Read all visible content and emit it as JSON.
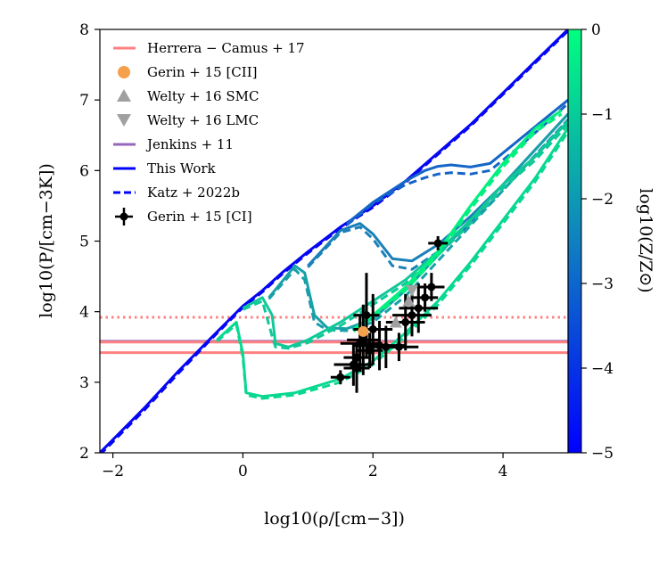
{
  "chart_data": {
    "type": "line",
    "xlabel": "log10(ρ/[cm−3])",
    "ylabel": "log10(P/[cm−3K])",
    "xlim": [
      -2.2,
      5.0
    ],
    "ylim": [
      2.0,
      8.0
    ],
    "x_ticks": [
      -2,
      0,
      2,
      4
    ],
    "y_ticks": [
      2,
      3,
      4,
      5,
      6,
      7,
      8
    ],
    "x_tick_labels": [
      "−2",
      "0",
      "2",
      "4"
    ],
    "y_tick_labels": [
      "2",
      "3",
      "4",
      "5",
      "6",
      "7",
      "8"
    ],
    "colorbar": {
      "label": "log10(Z/Z⊙)",
      "range": [
        -5,
        0
      ],
      "ticks": [
        0,
        -1,
        -2,
        -3,
        -4,
        -5
      ],
      "tick_labels": [
        "0",
        "−1",
        "−2",
        "−3",
        "−4",
        "−5"
      ],
      "color_low": "#0000ff",
      "color_high": "#00ff80"
    },
    "legend": {
      "placement": "top-left",
      "entries": [
        {
          "label": "Herrera − Camus + 17",
          "marker": "line",
          "color": "#ff8080"
        },
        {
          "label": "Gerin + 15 [CII]",
          "marker": "circle",
          "color": "#f5a04a"
        },
        {
          "label": "Welty + 16 SMC",
          "marker": "triangle-up",
          "color": "#a0a0a0"
        },
        {
          "label": "Welty + 16 LMC",
          "marker": "triangle-down",
          "color": "#a0a0a0"
        },
        {
          "label": "Jenkins + 11",
          "marker": "line",
          "color": "#9467bd"
        },
        {
          "label": "This Work",
          "marker": "line",
          "color": "#0000ff"
        },
        {
          "label": "Katz + 2022b",
          "marker": "dashed",
          "color": "#0000ff"
        },
        {
          "label": "Gerin + 15 [CI]",
          "marker": "errorbar",
          "color": "#000000"
        }
      ]
    },
    "hlines": [
      {
        "name": "Herrera-Camus+17 upper",
        "y": 3.92,
        "color": "#ff8080",
        "style": "dotted"
      },
      {
        "name": "Jenkins+11",
        "y": 3.58,
        "color": "#9467bd",
        "style": "solid"
      },
      {
        "name": "Herrera-Camus+17 mean",
        "y": 3.57,
        "color": "#ff8080",
        "style": "solid"
      },
      {
        "name": "Herrera-Camus+17 lower",
        "y": 3.42,
        "color": "#ff8080",
        "style": "solid"
      }
    ],
    "series": [
      {
        "name": "This Work",
        "logZ": -5,
        "color": "#0505f5",
        "style": "solid",
        "x": [
          -2.2,
          -1.5,
          -1.0,
          -0.5,
          0.0,
          0.3,
          0.6,
          1.0,
          1.5,
          2.0,
          2.5,
          3.0,
          3.5,
          4.0,
          4.5,
          5.0
        ],
        "y": [
          2.0,
          2.65,
          3.15,
          3.62,
          4.08,
          4.3,
          4.55,
          4.85,
          5.2,
          5.5,
          5.85,
          6.25,
          6.65,
          7.1,
          7.55,
          8.0
        ]
      },
      {
        "name": "Katz + 2022b",
        "logZ": -5,
        "color": "#0505f5",
        "style": "dashed",
        "x": [
          -2.2,
          -1.5,
          -1.0,
          -0.5,
          0.0,
          0.3,
          0.6,
          1.0,
          1.5,
          2.0,
          2.5,
          3.0,
          3.5,
          4.0,
          4.5,
          5.0
        ],
        "y": [
          1.97,
          2.62,
          3.12,
          3.6,
          4.06,
          4.28,
          4.53,
          4.83,
          5.18,
          5.48,
          5.83,
          6.23,
          6.63,
          7.08,
          7.53,
          7.98
        ]
      },
      {
        "name": "This Work",
        "logZ": -3.6,
        "color": "#1565c8",
        "style": "solid",
        "x": [
          1.6,
          2.0,
          2.5,
          2.8,
          3.0,
          3.2,
          3.5,
          3.8,
          4.2,
          4.6,
          5.0
        ],
        "y": [
          5.25,
          5.55,
          5.85,
          6.0,
          6.06,
          6.08,
          6.05,
          6.1,
          6.4,
          6.7,
          7.0
        ]
      },
      {
        "name": "Katz + 2022b",
        "logZ": -3.6,
        "color": "#1565c8",
        "style": "dashed",
        "x": [
          1.6,
          2.0,
          2.5,
          2.8,
          3.0,
          3.2,
          3.5,
          3.8,
          4.2,
          4.6,
          5.0
        ],
        "y": [
          5.23,
          5.53,
          5.8,
          5.9,
          5.95,
          5.97,
          5.95,
          6.0,
          6.3,
          6.62,
          6.95
        ]
      },
      {
        "name": "This Work",
        "logZ": -3.0,
        "color": "#1a80b8",
        "style": "solid",
        "x": [
          1.0,
          1.5,
          1.8,
          2.0,
          2.3,
          2.6,
          3.0,
          3.5,
          4.0,
          4.5,
          5.0
        ],
        "y": [
          4.65,
          5.15,
          5.25,
          5.1,
          4.75,
          4.72,
          4.95,
          5.35,
          5.8,
          6.3,
          6.8
        ]
      },
      {
        "name": "Katz + 2022b",
        "logZ": -3.0,
        "color": "#1a80b8",
        "style": "dashed",
        "x": [
          1.0,
          1.5,
          1.8,
          2.0,
          2.3,
          2.6,
          3.0,
          3.5,
          4.0,
          4.5,
          5.0
        ],
        "y": [
          4.63,
          5.12,
          5.2,
          5.03,
          4.65,
          4.6,
          4.85,
          5.25,
          5.72,
          6.22,
          6.72
        ]
      },
      {
        "name": "This Work",
        "logZ": -2.2,
        "color": "#18a0a8",
        "style": "solid",
        "x": [
          0.4,
          0.8,
          0.95,
          1.1,
          1.3,
          1.6,
          2.0,
          2.5,
          3.0,
          3.5,
          4.0,
          4.5,
          5.0
        ],
        "y": [
          4.2,
          4.65,
          4.55,
          3.95,
          3.77,
          3.76,
          3.9,
          4.3,
          4.8,
          5.3,
          5.8,
          6.3,
          6.8
        ]
      },
      {
        "name": "Katz + 2022b",
        "logZ": -2.2,
        "color": "#18a0a8",
        "style": "dashed",
        "x": [
          0.4,
          0.8,
          0.95,
          1.1,
          1.3,
          1.6,
          2.0,
          2.5,
          3.0,
          3.5,
          4.0,
          4.5,
          5.0
        ],
        "y": [
          4.18,
          4.6,
          4.45,
          3.85,
          3.74,
          3.73,
          3.85,
          4.22,
          4.72,
          5.22,
          5.72,
          6.22,
          6.72
        ]
      },
      {
        "name": "This Work",
        "logZ": -1.2,
        "color": "#10c898",
        "style": "solid",
        "x": [
          0.0,
          0.3,
          0.45,
          0.5,
          0.7,
          1.0,
          1.5,
          2.0,
          2.5,
          3.0,
          3.5,
          4.0,
          4.5,
          5.0
        ],
        "y": [
          4.05,
          4.2,
          3.95,
          3.55,
          3.5,
          3.6,
          3.85,
          4.15,
          4.45,
          4.85,
          5.3,
          5.8,
          6.2,
          6.7
        ]
      },
      {
        "name": "Katz + 2022b",
        "logZ": -1.2,
        "color": "#10c898",
        "style": "dashed",
        "x": [
          0.0,
          0.3,
          0.45,
          0.5,
          0.7,
          1.0,
          1.5,
          2.0,
          2.5,
          3.0,
          3.5,
          4.0,
          4.5,
          5.0
        ],
        "y": [
          4.03,
          4.15,
          3.65,
          3.5,
          3.48,
          3.56,
          3.8,
          4.1,
          4.4,
          4.8,
          5.25,
          5.75,
          6.15,
          6.65
        ]
      },
      {
        "name": "This Work",
        "logZ": -0.6,
        "color": "#08d890",
        "style": "solid",
        "x": [
          -0.4,
          -0.1,
          0.0,
          0.05,
          0.3,
          0.8,
          1.5,
          2.0,
          2.5,
          3.0,
          3.5,
          4.0,
          4.5,
          5.0
        ],
        "y": [
          3.6,
          3.85,
          3.4,
          2.85,
          2.8,
          2.85,
          3.05,
          3.3,
          3.7,
          4.15,
          4.7,
          5.3,
          5.9,
          6.6
        ]
      },
      {
        "name": "Katz + 2022b",
        "logZ": -0.6,
        "color": "#08d890",
        "style": "dashed",
        "x": [
          -0.4,
          -0.1,
          0.0,
          0.05,
          0.3,
          0.8,
          1.5,
          2.0,
          2.5,
          3.0,
          3.5,
          4.0,
          4.5,
          5.0
        ],
        "y": [
          3.58,
          3.82,
          3.35,
          2.82,
          2.77,
          2.82,
          3.0,
          3.25,
          3.65,
          4.1,
          4.65,
          5.25,
          5.85,
          6.55
        ]
      },
      {
        "name": "This Work",
        "logZ": -0.1,
        "color": "#00f080",
        "style": "solid",
        "x": [
          1.7,
          2.0,
          2.5,
          3.0,
          3.5,
          4.0,
          4.5,
          4.9
        ],
        "y": [
          3.75,
          3.95,
          4.35,
          4.85,
          5.5,
          6.1,
          6.6,
          6.85
        ]
      },
      {
        "name": "Katz + 2022b",
        "logZ": -0.1,
        "color": "#00f080",
        "style": "dashed",
        "x": [
          1.7,
          2.0,
          2.5,
          3.0,
          3.5,
          4.0,
          4.5,
          4.9
        ],
        "y": [
          3.72,
          3.92,
          4.3,
          4.8,
          5.45,
          6.05,
          6.55,
          6.8
        ]
      }
    ],
    "gerin_ci": {
      "label": "Gerin + 15 [CI]",
      "x": [
        1.5,
        1.7,
        1.75,
        1.8,
        1.85,
        1.9,
        2.0,
        2.1,
        2.2,
        2.4,
        2.5,
        2.6,
        2.7,
        2.8,
        2.9,
        3.0,
        1.75,
        1.95
      ],
      "y": [
        3.07,
        3.25,
        3.2,
        3.55,
        3.6,
        3.95,
        3.75,
        3.52,
        3.5,
        3.5,
        3.85,
        3.95,
        4.05,
        4.2,
        4.35,
        4.97,
        3.35,
        3.45
      ],
      "xerr": [
        0.15,
        0.3,
        0.2,
        0.3,
        0.25,
        0.2,
        0.3,
        0.4,
        0.3,
        0.3,
        0.3,
        0.3,
        0.3,
        0.2,
        0.2,
        0.15,
        0.2,
        0.2
      ],
      "yerr": [
        0.1,
        0.3,
        0.35,
        0.4,
        0.5,
        0.6,
        0.5,
        0.35,
        0.3,
        0.2,
        0.4,
        0.3,
        0.35,
        0.2,
        0.2,
        0.1,
        0.2,
        0.25
      ]
    },
    "gerin_cii": {
      "label": "Gerin + 15 [CII]",
      "x": [
        1.85
      ],
      "y": [
        3.72
      ],
      "color": "#f5a04a"
    },
    "welty_smc": {
      "label": "Welty + 16 SMC",
      "x": [
        2.35,
        2.55
      ],
      "y": [
        3.85,
        4.15
      ],
      "color": "#a0a0a0"
    },
    "welty_lmc": {
      "label": "Welty + 16 LMC",
      "x": [
        2.6
      ],
      "y": [
        4.3
      ],
      "color": "#a0a0a0"
    }
  }
}
